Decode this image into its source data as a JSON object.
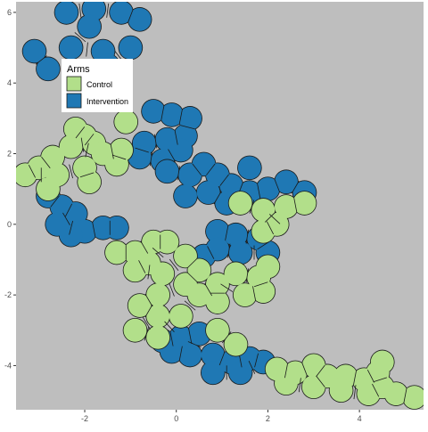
{
  "chart_data": {
    "type": "map",
    "title": "",
    "xlabel": "",
    "ylabel": "",
    "xlim": [
      -3.5,
      5.4
    ],
    "ylim": [
      -5.25,
      6.3
    ],
    "x_ticks": [
      -2,
      0,
      2,
      4
    ],
    "y_ticks": [
      -4,
      -2,
      0,
      2,
      4,
      6
    ],
    "grid": false,
    "panel_background": "#bebebe",
    "legend": {
      "title": "Arms",
      "placement": "top-left",
      "entries": [
        {
          "label": "Control",
          "color": "#b2df8a"
        },
        {
          "label": "Intervention",
          "color": "#1f78b4"
        }
      ]
    },
    "series": [
      {
        "name": "Intervention",
        "color": "#1f78b4",
        "clusters": [
          [
            [
              -2.4,
              6.0
            ],
            [
              -1.8,
              6.1
            ],
            [
              -1.2,
              6.0
            ],
            [
              -0.8,
              5.8
            ],
            [
              -1.9,
              5.6
            ],
            [
              -2.3,
              5.0
            ],
            [
              -1.6,
              4.9
            ],
            [
              -2.8,
              4.4
            ],
            [
              -3.1,
              4.9
            ],
            [
              -2.2,
              4.3
            ],
            [
              -1.5,
              4.5
            ],
            [
              -1.0,
              5.0
            ]
          ],
          [
            [
              -0.5,
              3.2
            ],
            [
              -0.1,
              3.1
            ],
            [
              0.3,
              3.0
            ],
            [
              0.2,
              2.5
            ],
            [
              -0.2,
              2.4
            ],
            [
              -0.7,
              2.3
            ],
            [
              -0.8,
              1.9
            ],
            [
              -0.3,
              1.8
            ],
            [
              0.1,
              2.1
            ]
          ],
          [
            [
              -0.2,
              1.5
            ],
            [
              0.3,
              1.4
            ],
            [
              0.6,
              1.7
            ],
            [
              0.9,
              1.4
            ],
            [
              1.2,
              1.1
            ],
            [
              1.6,
              0.9
            ],
            [
              2.0,
              1.0
            ],
            [
              2.4,
              1.2
            ],
            [
              2.8,
              0.9
            ],
            [
              1.6,
              1.6
            ],
            [
              0.7,
              0.9
            ],
            [
              1.1,
              0.6
            ],
            [
              0.2,
              0.8
            ]
          ],
          [
            [
              -2.8,
              0.8
            ],
            [
              -2.5,
              0.5
            ],
            [
              -2.2,
              0.3
            ],
            [
              -2.6,
              0.0
            ],
            [
              -2.0,
              -0.2
            ],
            [
              -1.6,
              -0.1
            ],
            [
              -1.3,
              -0.1
            ],
            [
              -2.3,
              -0.3
            ]
          ],
          [
            [
              0.9,
              -0.2
            ],
            [
              1.3,
              -0.3
            ],
            [
              1.8,
              -0.4
            ],
            [
              2.0,
              -0.8
            ],
            [
              1.4,
              -0.8
            ],
            [
              0.9,
              -0.7
            ],
            [
              0.6,
              -0.9
            ]
          ],
          [
            [
              -0.3,
              -3.3
            ],
            [
              0.1,
              -3.2
            ],
            [
              0.5,
              -3.1
            ],
            [
              0.3,
              -3.7
            ],
            [
              -0.1,
              -3.6
            ],
            [
              0.8,
              -3.7
            ],
            [
              1.2,
              -3.9
            ],
            [
              1.6,
              -3.8
            ],
            [
              1.9,
              -3.9
            ],
            [
              1.4,
              -4.2
            ],
            [
              0.8,
              -4.2
            ]
          ]
        ]
      },
      {
        "name": "Control",
        "color": "#b2df8a",
        "clusters": [
          [
            [
              -2.2,
              2.7
            ],
            [
              -2.0,
              2.5
            ],
            [
              -1.8,
              2.3
            ],
            [
              -2.3,
              2.2
            ],
            [
              -1.6,
              2.0
            ],
            [
              -1.2,
              2.1
            ],
            [
              -1.3,
              1.7
            ],
            [
              -2.7,
              1.9
            ],
            [
              -3.0,
              1.6
            ],
            [
              -3.3,
              1.4
            ],
            [
              -2.6,
              1.4
            ],
            [
              -2.0,
              1.6
            ],
            [
              -1.9,
              1.2
            ],
            [
              -2.8,
              1.0
            ],
            [
              -1.1,
              2.9
            ]
          ],
          [
            [
              -1.3,
              -0.8
            ],
            [
              -0.9,
              -0.8
            ],
            [
              -0.5,
              -0.5
            ],
            [
              -0.2,
              -0.5
            ],
            [
              -0.6,
              -1.1
            ],
            [
              -0.9,
              -1.3
            ],
            [
              -0.3,
              -1.4
            ],
            [
              0.2,
              -0.9
            ],
            [
              0.5,
              -1.3
            ],
            [
              0.2,
              -1.7
            ],
            [
              -0.4,
              -2.0
            ],
            [
              -0.8,
              -2.3
            ],
            [
              -0.4,
              -2.6
            ],
            [
              -0.9,
              -3.0
            ],
            [
              -0.4,
              -3.2
            ],
            [
              0.1,
              -2.6
            ],
            [
              0.5,
              -2.0
            ],
            [
              0.9,
              -1.7
            ],
            [
              0.9,
              -2.2
            ],
            [
              1.3,
              -1.4
            ],
            [
              1.8,
              -1.5
            ],
            [
              1.9,
              -1.9
            ],
            [
              1.5,
              -2.0
            ],
            [
              2.0,
              -1.2
            ]
          ],
          [
            [
              1.4,
              0.6
            ],
            [
              1.9,
              0.4
            ],
            [
              2.2,
              0.0
            ],
            [
              1.9,
              -0.2
            ],
            [
              2.4,
              0.5
            ],
            [
              2.8,
              0.6
            ]
          ],
          [
            [
              1.3,
              -3.4
            ],
            [
              0.9,
              -3.0
            ],
            [
              2.2,
              -4.1
            ],
            [
              2.6,
              -4.2
            ],
            [
              3.0,
              -4.0
            ],
            [
              3.3,
              -4.3
            ],
            [
              3.0,
              -4.6
            ],
            [
              2.4,
              -4.5
            ],
            [
              3.7,
              -4.3
            ],
            [
              4.1,
              -4.4
            ],
            [
              4.4,
              -4.2
            ],
            [
              4.5,
              -4.6
            ],
            [
              4.2,
              -4.8
            ],
            [
              3.6,
              -4.7
            ],
            [
              4.8,
              -4.8
            ],
            [
              5.2,
              -4.9
            ],
            [
              4.5,
              -3.9
            ]
          ]
        ]
      }
    ]
  }
}
